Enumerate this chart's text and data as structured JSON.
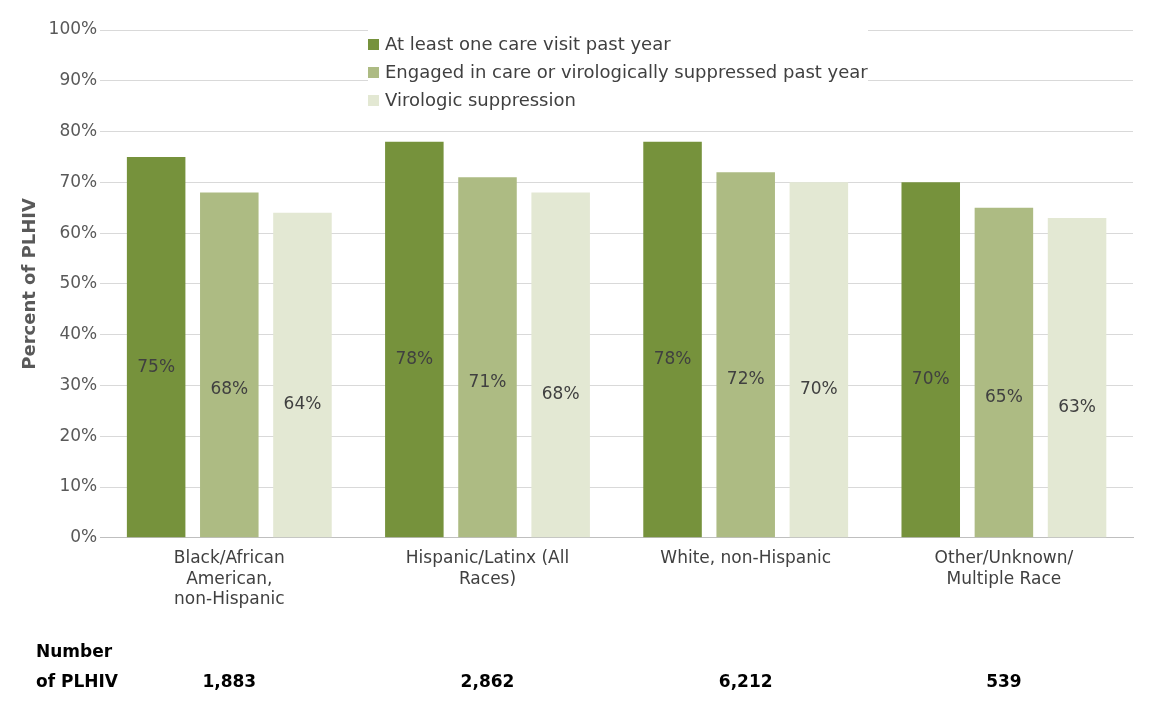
{
  "chart_data": {
    "type": "bar",
    "ylabel": "Percent of PLHIV",
    "categories": [
      "Black/African American, non-Hispanic",
      "Hispanic/Latinx (All Races)",
      "White, non-Hispanic",
      "Other/Unknown/ Multiple Race"
    ],
    "series": [
      {
        "name": "At least one care visit past year",
        "color": "#76923c",
        "values": [
          75,
          78,
          78,
          70
        ],
        "value_labels": [
          "75%",
          "78%",
          "78%",
          "70%"
        ]
      },
      {
        "name": "Engaged in care or virologically suppressed past year",
        "color": "#adbb83",
        "values": [
          68,
          71,
          72,
          65
        ],
        "value_labels": [
          "68%",
          "71%",
          "72%",
          "65%"
        ]
      },
      {
        "name": "Virologic suppression",
        "color": "#e3e8d3",
        "values": [
          64,
          68,
          70,
          63
        ],
        "value_labels": [
          "64%",
          "68%",
          "70%",
          "63%"
        ]
      }
    ],
    "ylim": [
      0,
      100
    ],
    "yticks": [
      {
        "value": 0,
        "label": "0%"
      },
      {
        "value": 10,
        "label": "10%"
      },
      {
        "value": 20,
        "label": "20%"
      },
      {
        "value": 30,
        "label": "30%"
      },
      {
        "value": 40,
        "label": "40%"
      },
      {
        "value": 50,
        "label": "50%"
      },
      {
        "value": 60,
        "label": "60%"
      },
      {
        "value": 70,
        "label": "70%"
      },
      {
        "value": 80,
        "label": "80%"
      },
      {
        "value": 90,
        "label": "90%"
      },
      {
        "value": 100,
        "label": "100%"
      }
    ],
    "grid": "y",
    "legend": "top",
    "annotations": [
      "Number of PLHIV",
      "1,883",
      "2,862",
      "6,212",
      "539"
    ]
  }
}
